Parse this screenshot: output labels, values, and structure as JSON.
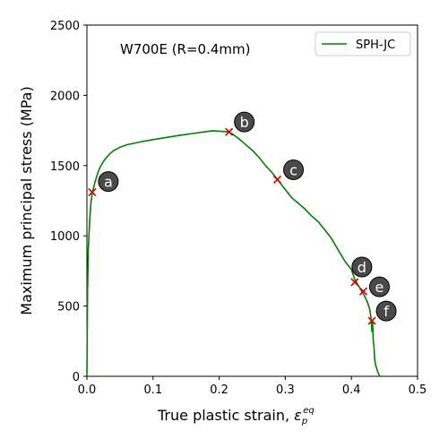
{
  "chart_data": {
    "type": "line",
    "xlabel_text": "True plastic strain, ",
    "xlabel_symbol": "ε",
    "xlabel_sup": "eq",
    "xlabel_sub": "p",
    "ylabel": "Maximum principal stress (MPa)",
    "annotation": "W700E (R=0.4mm)",
    "xlim": [
      0,
      0.5
    ],
    "ylim": [
      0,
      2500
    ],
    "xticks": [
      0.0,
      0.1,
      0.2,
      0.3,
      0.4,
      0.5
    ],
    "xtick_labels": [
      "0.0",
      "0.1",
      "0.2",
      "0.3",
      "0.4",
      "0.5"
    ],
    "yticks": [
      0,
      500,
      1000,
      1500,
      2000,
      2500
    ],
    "ytick_labels": [
      "0",
      "500",
      "1000",
      "1500",
      "2000",
      "2500"
    ],
    "legend_position": "top-right",
    "grid": false,
    "series": [
      {
        "name": "SPH-JC",
        "color": "#008000",
        "x": [
          0,
          0.001,
          0.002,
          0.004,
          0.006,
          0.008,
          0.012,
          0.016,
          0.02,
          0.025,
          0.03,
          0.035,
          0.04,
          0.05,
          0.06,
          0.08,
          0.1,
          0.12,
          0.14,
          0.16,
          0.18,
          0.19,
          0.2,
          0.21,
          0.215,
          0.22,
          0.23,
          0.24,
          0.25,
          0.26,
          0.27,
          0.28,
          0.29,
          0.3,
          0.31,
          0.32,
          0.33,
          0.34,
          0.35,
          0.36,
          0.37,
          0.38,
          0.39,
          0.4,
          0.405,
          0.41,
          0.415,
          0.42,
          0.425,
          0.428,
          0.43,
          0.431,
          0.432,
          0.433,
          0.434,
          0.435,
          0.436,
          0.438,
          0.44,
          0.443
        ],
        "y": [
          0,
          600,
          900,
          1100,
          1230,
          1300,
          1380,
          1440,
          1490,
          1530,
          1560,
          1585,
          1605,
          1630,
          1648,
          1668,
          1685,
          1700,
          1715,
          1728,
          1742,
          1748,
          1745,
          1742,
          1738,
          1725,
          1690,
          1650,
          1610,
          1560,
          1500,
          1450,
          1390,
          1330,
          1270,
          1230,
          1190,
          1140,
          1100,
          1040,
          980,
          900,
          820,
          760,
          690,
          650,
          610,
          570,
          520,
          470,
          400,
          320,
          390,
          250,
          220,
          140,
          90,
          60,
          30,
          0
        ]
      }
    ],
    "points": [
      {
        "label": "a",
        "x": 0.008,
        "y": 1310
      },
      {
        "label": "b",
        "x": 0.215,
        "y": 1740
      },
      {
        "label": "c",
        "x": 0.288,
        "y": 1400
      },
      {
        "label": "d",
        "x": 0.405,
        "y": 670
      },
      {
        "label": "e",
        "x": 0.418,
        "y": 605
      },
      {
        "label": "f",
        "x": 0.431,
        "y": 395
      }
    ]
  }
}
